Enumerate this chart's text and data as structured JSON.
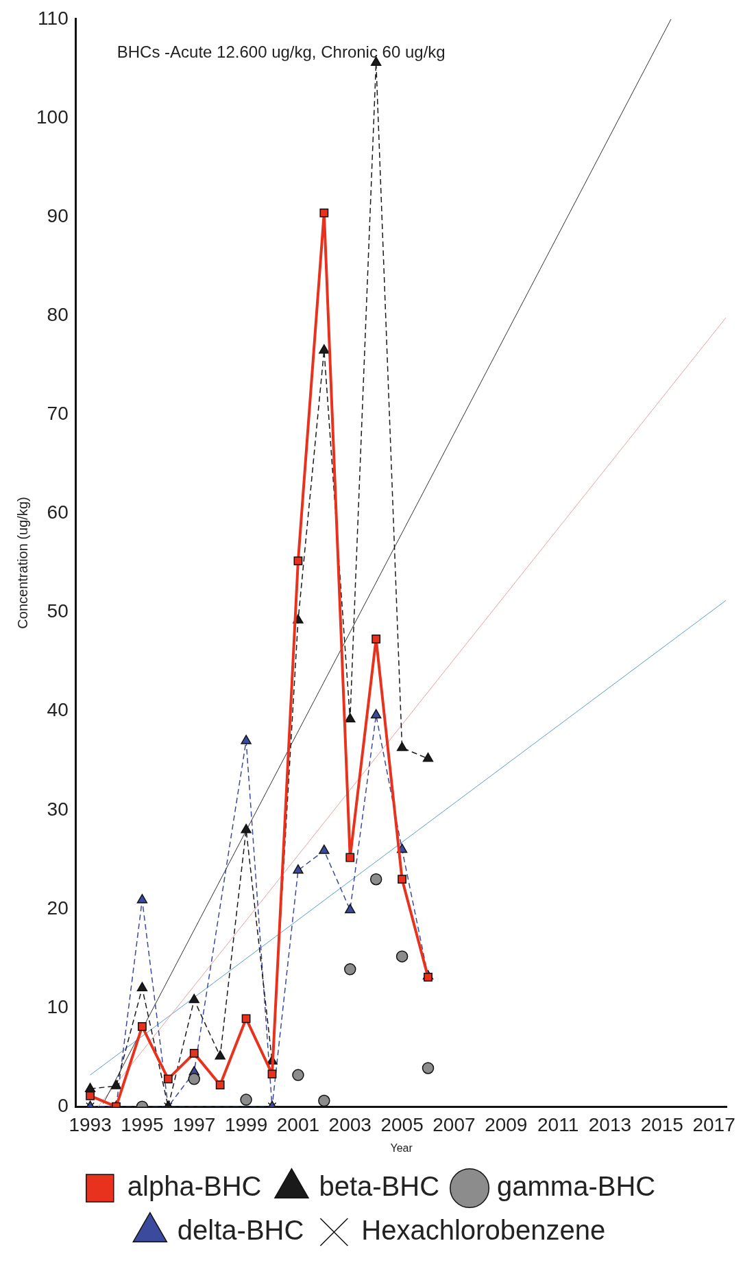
{
  "chart_data": {
    "type": "line",
    "xlabel": "Year",
    "ylabel": "Concentration (ug/kg)",
    "annotations": [
      "BHCs -Acute 12.600 ug/kg, Chronic 60 ug/kg"
    ],
    "x": [
      1993,
      1994,
      1995,
      1996,
      1997,
      1998,
      1999,
      2000,
      2001,
      2002,
      2003,
      2004,
      2005,
      2006
    ],
    "xlim": [
      1992.45,
      2017.5
    ],
    "xticks": [
      1993,
      1995,
      1997,
      1999,
      2001,
      2003,
      2005,
      2007,
      2009,
      2011,
      2013,
      2015,
      2017
    ],
    "ylim": [
      0,
      110
    ],
    "yticks": [
      0,
      10,
      20,
      30,
      40,
      50,
      60,
      70,
      80,
      90,
      100,
      110
    ],
    "legend": "bottom",
    "series": [
      {
        "name": "alpha-BHC",
        "type": "line",
        "color": "#e8321e",
        "marker": "square",
        "line_style": "solid",
        "values": [
          1.1,
          0,
          8.1,
          2.8,
          5.4,
          2.2,
          8.9,
          3.3,
          55.2,
          90.4,
          25.2,
          47.3,
          23.0,
          13.1
        ]
      },
      {
        "name": "beta-BHC",
        "type": "line",
        "color": "#1a1a1a",
        "marker": "triangle",
        "line_style": "dashed",
        "values": [
          1.8,
          2.1,
          12.0,
          0,
          10.8,
          5.1,
          28.0,
          4.6,
          49.2,
          76.5,
          39.2,
          105.6,
          36.3,
          35.2
        ]
      },
      {
        "name": "gamma-BHC",
        "type": "scatter",
        "color": "#8c8c8c",
        "marker": "circle",
        "values": [
          null,
          null,
          0,
          null,
          2.8,
          null,
          0.7,
          null,
          3.2,
          0.6,
          13.9,
          23.0,
          15.2,
          3.9
        ]
      },
      {
        "name": "delta-BHC",
        "type": "line",
        "color": "#3b4a9c",
        "marker": "triangle",
        "line_style": "dashed",
        "values": [
          0,
          0,
          20.9,
          0,
          3.5,
          null,
          37.0,
          0,
          23.9,
          25.9,
          19.9,
          39.6,
          26.0,
          13.2
        ]
      },
      {
        "name": "Hexachlorobenzene",
        "type": "line",
        "color": "#2b3a6b",
        "marker": "cross",
        "line_style": "dashed",
        "values": [
          0,
          0,
          null,
          0,
          null,
          null,
          null,
          0,
          null,
          null,
          null,
          null,
          null,
          null
        ]
      },
      {
        "type": "line",
        "color": "#333333",
        "marker": "none",
        "line_style": "solid",
        "x": [
          1993.5,
          2015.35
        ],
        "values": [
          0.3,
          110
        ]
      },
      {
        "type": "line",
        "color": "#e8a0a0",
        "marker": "none",
        "line_style": "solid",
        "x": [
          1993.3,
          2017.46
        ],
        "values": [
          0,
          79.8
        ]
      },
      {
        "type": "line",
        "color": "#5b9bd5",
        "marker": "none",
        "line_style": "solid",
        "x": [
          1993,
          2017.46
        ],
        "values": [
          3.2,
          51.2
        ]
      }
    ]
  }
}
